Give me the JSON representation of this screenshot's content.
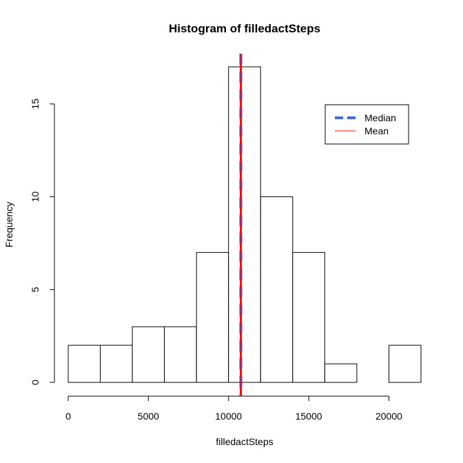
{
  "chart_data": {
    "type": "bar",
    "title": "Histogram of filledactSteps",
    "xlabel": "filledactSteps",
    "ylabel": "Frequency",
    "bin_edges": [
      0,
      2000,
      4000,
      6000,
      8000,
      10000,
      12000,
      14000,
      16000,
      18000,
      20000,
      22000
    ],
    "counts": [
      2,
      2,
      3,
      3,
      7,
      17,
      10,
      7,
      1,
      0,
      2
    ],
    "x_ticks": [
      0,
      5000,
      10000,
      15000,
      20000
    ],
    "x_tick_labels": [
      "0",
      "5000",
      "10000",
      "15000",
      "20000"
    ],
    "y_ticks": [
      0,
      5,
      10,
      15
    ],
    "y_tick_labels": [
      "0",
      "5",
      "10",
      "15"
    ],
    "xlim": [
      0,
      22000
    ],
    "ylim": [
      0,
      17
    ],
    "grid": false,
    "legend_position": "top-right",
    "median": 10766,
    "mean": 10766,
    "legend": [
      {
        "label": "Median",
        "color": "#4169e1",
        "style": "dashed"
      },
      {
        "label": "Mean",
        "color": "#ff0000",
        "style": "solid"
      }
    ]
  },
  "colors": {
    "median": "#4169e1",
    "mean": "#ff0000",
    "median_overlap": "#9b3060"
  }
}
